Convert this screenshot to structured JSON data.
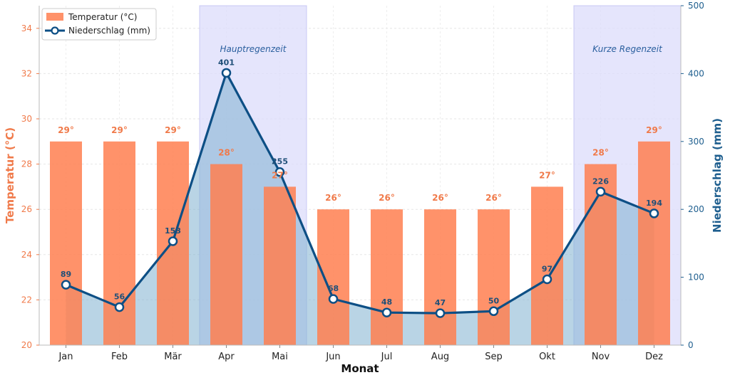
{
  "chart_data": {
    "type": "bar+line",
    "xlabel": "Monat",
    "categories": [
      "Jan",
      "Feb",
      "Mär",
      "Apr",
      "Mai",
      "Jun",
      "Jul",
      "Aug",
      "Sep",
      "Okt",
      "Nov",
      "Dez"
    ],
    "series": [
      {
        "name": "Temperatur (°C)",
        "type": "bar",
        "axis": "left",
        "values": [
          29,
          29,
          29,
          28,
          27,
          26,
          26,
          26,
          26,
          27,
          28,
          29
        ],
        "labels": [
          "29°",
          "29°",
          "29°",
          "28°",
          "27°",
          "26°",
          "26°",
          "26°",
          "26°",
          "27°",
          "28°",
          "29°"
        ]
      },
      {
        "name": "Niederschlag (mm)",
        "type": "line",
        "axis": "right",
        "values": [
          89,
          56,
          153,
          401,
          255,
          68,
          48,
          47,
          50,
          97,
          226,
          194
        ]
      }
    ],
    "y_left": {
      "label": "Temperatur (°C)",
      "lim": [
        20,
        35
      ],
      "ticks": [
        20,
        22,
        24,
        26,
        28,
        30,
        32,
        34
      ]
    },
    "y_right": {
      "label": "Niederschlag (mm)",
      "lim": [
        0,
        500
      ],
      "ticks": [
        0,
        100,
        200,
        300,
        400,
        500
      ]
    },
    "shaded_regions": [
      {
        "label": "Hauptregenzeit",
        "from": "Apr",
        "to": "Mai"
      },
      {
        "label": "Kurze Regenzeit",
        "from": "Nov",
        "to": "Dez"
      }
    ],
    "legend_position": "top-left",
    "grid": true
  },
  "colors": {
    "temp_bar": "#ff7f50",
    "rain_line": "#0d4f85",
    "rain_fill": "#7fb0d0",
    "shade": "#dcdcfb",
    "left_axis": "#f07a4a",
    "right_axis": "#1f5f8f"
  }
}
